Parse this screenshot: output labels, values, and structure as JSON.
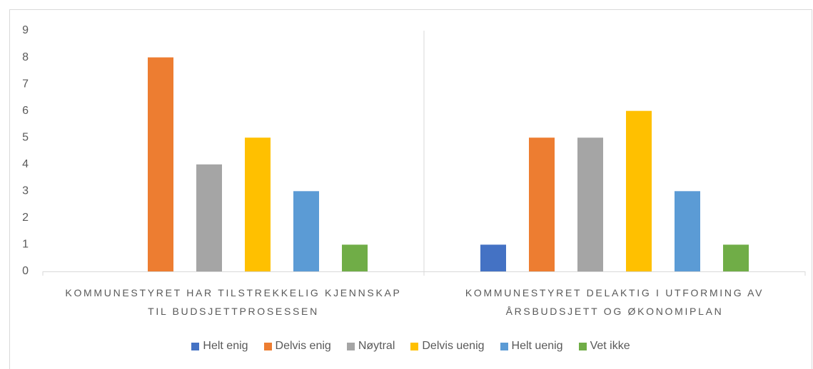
{
  "chart_data": {
    "type": "bar",
    "categories": [
      "KOMMUNESTYRET HAR TILSTREKKELIG KJENNSKAP TIL BUDSJETTPROSESSEN",
      "KOMMUNESTYRET DELAKTIG I UTFORMING AV ÅRSBUDSJETT OG ØKONOMIPLAN"
    ],
    "series": [
      {
        "name": "Helt enig",
        "color": "#4472c4",
        "values": [
          0,
          1
        ]
      },
      {
        "name": "Delvis enig",
        "color": "#ed7d31",
        "values": [
          8,
          5
        ]
      },
      {
        "name": "Nøytral",
        "color": "#a5a5a5",
        "values": [
          4,
          5
        ]
      },
      {
        "name": "Delvis uenig",
        "color": "#ffc000",
        "values": [
          5,
          6
        ]
      },
      {
        "name": "Helt uenig",
        "color": "#5b9bd5",
        "values": [
          3,
          3
        ]
      },
      {
        "name": "Vet ikke",
        "color": "#70ad47",
        "values": [
          1,
          1
        ]
      }
    ],
    "ylim": [
      0,
      9
    ],
    "yticks": [
      0,
      1,
      2,
      3,
      4,
      5,
      6,
      7,
      8,
      9
    ],
    "grid": false,
    "legend": "bottom"
  }
}
